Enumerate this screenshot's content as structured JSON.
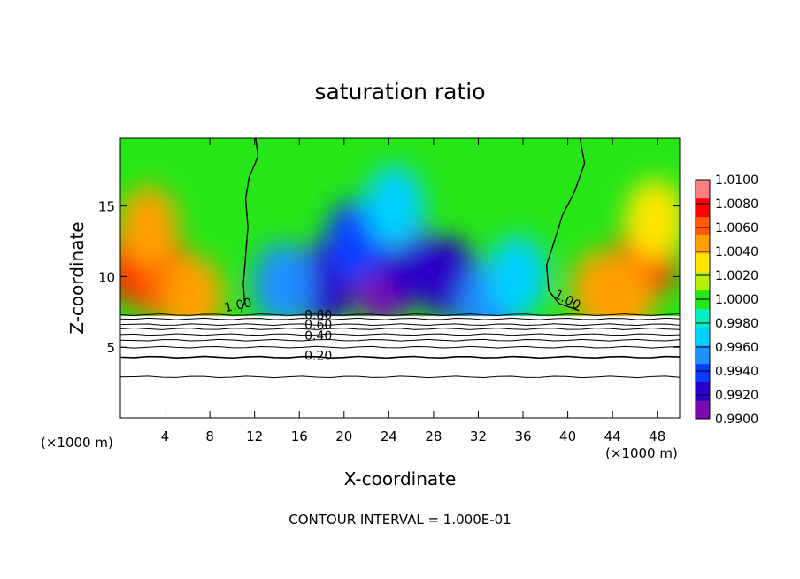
{
  "chart_data": {
    "type": "heatmap",
    "title": "saturation ratio",
    "xlabel": "X-coordinate",
    "ylabel": "Z-coordinate",
    "x_unit_left": "(×1000 m)",
    "x_unit_right": "(×1000 m)",
    "footer": "CONTOUR INTERVAL = 1.000E-01",
    "xlim": [
      0,
      50
    ],
    "ylim": [
      0,
      19.8
    ],
    "x_ticks": [
      4,
      8,
      12,
      16,
      20,
      24,
      28,
      32,
      36,
      40,
      44,
      48
    ],
    "y_ticks": [
      5,
      10,
      15
    ],
    "colorbar": {
      "levels": [
        "1.0100",
        "1.0080",
        "1.0060",
        "1.0040",
        "1.0020",
        "1.0000",
        "0.9980",
        "0.9960",
        "0.9940",
        "0.9920",
        "0.9900"
      ],
      "min": 0.99,
      "max": 1.01,
      "colors": [
        "#7a0cb0",
        "#2a00c8",
        "#0a3cff",
        "#1e90ff",
        "#00d0ff",
        "#00f0c0",
        "#26e617",
        "#b4f00a",
        "#ffe600",
        "#ffa000",
        "#ff5a00",
        "#ff0000",
        "#ff8080"
      ]
    },
    "surface_height_km": 7.2,
    "contour_labels": [
      {
        "text": "1.00",
        "x": 10.6,
        "z": 7.7
      },
      {
        "text": "1.00",
        "x": 39.8,
        "z": 8.1
      },
      {
        "text": "0.80",
        "x": 17.7,
        "z": 7.0
      },
      {
        "text": "0.60",
        "x": 17.7,
        "z": 6.3
      },
      {
        "text": "0.40",
        "x": 17.7,
        "z": 5.5
      },
      {
        "text": "0.20",
        "x": 17.7,
        "z": 4.1
      }
    ],
    "contour_levels_below_surface": [
      {
        "level": 0.9,
        "z": 7.3
      },
      {
        "level": 0.8,
        "z": 7.0
      },
      {
        "level": 0.7,
        "z": 6.6
      },
      {
        "level": 0.6,
        "z": 6.3
      },
      {
        "level": 0.5,
        "z": 5.9
      },
      {
        "level": 0.4,
        "z": 5.5
      },
      {
        "level": 0.3,
        "z": 5.0
      },
      {
        "level": 0.2,
        "z": 4.3
      },
      {
        "level": 0.1,
        "z": 2.9
      }
    ],
    "contour_1_00_left": [
      [
        12.1,
        19.8
      ],
      [
        12.3,
        18.5
      ],
      [
        11.5,
        17.0
      ],
      [
        11.2,
        15.5
      ],
      [
        11.4,
        13.5
      ],
      [
        11.2,
        11.5
      ],
      [
        11.0,
        9.5
      ],
      [
        11.1,
        8.2
      ],
      [
        10.8,
        7.5
      ]
    ],
    "contour_1_00_right": [
      [
        41.1,
        19.8
      ],
      [
        41.5,
        18.0
      ],
      [
        40.6,
        16.0
      ],
      [
        39.5,
        14.3
      ],
      [
        38.8,
        12.5
      ],
      [
        38.1,
        10.8
      ],
      [
        38.3,
        9.0
      ],
      [
        39.2,
        8.1
      ],
      [
        41.0,
        7.6
      ]
    ],
    "field_features": [
      {
        "x": 1.5,
        "z": 10.8,
        "value": 1.007
      },
      {
        "x": 4.0,
        "z": 9.8,
        "value": 1.006
      },
      {
        "x": 2.5,
        "z": 13.5,
        "value": 1.004
      },
      {
        "x": 6.5,
        "z": 8.6,
        "value": 1.005
      },
      {
        "x": 47.0,
        "z": 11.2,
        "value": 1.007
      },
      {
        "x": 45.0,
        "z": 8.5,
        "value": 1.005
      },
      {
        "x": 47.8,
        "z": 14.0,
        "value": 1.003
      },
      {
        "x": 43.0,
        "z": 9.0,
        "value": 1.004
      },
      {
        "x": 23.5,
        "z": 9.5,
        "value": 0.9915
      },
      {
        "x": 29.5,
        "z": 9.8,
        "value": 0.9925
      },
      {
        "x": 18.2,
        "z": 9.5,
        "value": 0.9925
      },
      {
        "x": 21.0,
        "z": 12.5,
        "value": 0.9945
      },
      {
        "x": 26.0,
        "z": 11.0,
        "value": 0.993
      },
      {
        "x": 33.0,
        "z": 8.0,
        "value": 0.995
      },
      {
        "x": 14.5,
        "z": 9.5,
        "value": 0.9955
      },
      {
        "x": 24.5,
        "z": 15.0,
        "value": 0.9965
      },
      {
        "x": 35.5,
        "z": 10.0,
        "value": 0.9975
      }
    ]
  }
}
